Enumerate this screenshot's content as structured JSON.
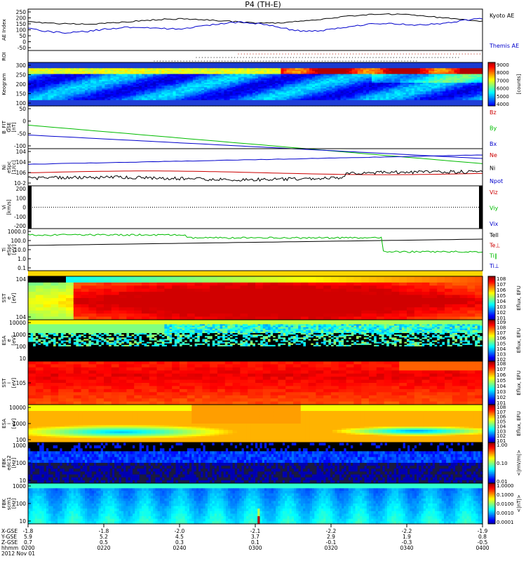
{
  "title": "P4 (TH-E)",
  "chart_data": {
    "type": "multi-panel-timeseries",
    "time_axis": {
      "rows": [
        {
          "label": "X-GSE",
          "values": [
            "-1.8",
            "-1.8",
            "-2.0",
            "-2.1",
            "-2.2",
            "-2.2",
            "-1.9"
          ]
        },
        {
          "label": "Y-GSE",
          "values": [
            "5.9",
            "5.2",
            "4.5",
            "3.7",
            "2.9",
            "1.9",
            "0.8"
          ]
        },
        {
          "label": "Z-GSE",
          "values": [
            "0.7",
            "0.5",
            "0.3",
            "0.1",
            "-0.1",
            "-0.3",
            "-0.5"
          ]
        },
        {
          "label": "hhmm",
          "values": [
            "0200",
            "0220",
            "0240",
            "0300",
            "0320",
            "0340",
            "0400"
          ]
        }
      ],
      "date": "2012 Nov 01"
    },
    "panels": [
      {
        "id": "ae",
        "ylabel": "AE Index",
        "yticks": [
          "250",
          "200",
          "150",
          "100",
          "50",
          "0",
          "-50"
        ],
        "ylim": [
          -50,
          250
        ],
        "series": [
          {
            "name": "Kyoto AE",
            "color": "#000000"
          },
          {
            "name": "Themis AE",
            "color": "#0000cc"
          }
        ]
      },
      {
        "id": "roi",
        "ylabel": "ROI"
      },
      {
        "id": "keogram",
        "ylabel": "Keogram",
        "yticks": [
          "300",
          "250",
          "200",
          "150",
          "100"
        ],
        "colorbar": {
          "ticks": [
            "9000",
            "8000",
            "7000",
            "6000",
            "5000",
            "4000"
          ],
          "label": "[counts]"
        }
      },
      {
        "id": "bfit",
        "ylabel": "B_FIT\nGSE\n[nT]",
        "yticks": [
          "50",
          "0",
          "-50",
          "-100"
        ],
        "ylim": [
          -100,
          50
        ],
        "series": [
          {
            "name": "Bz",
            "color": "#cc0000"
          },
          {
            "name": "By",
            "color": "#00bb00"
          },
          {
            "name": "Bx",
            "color": "#0000cc"
          }
        ]
      },
      {
        "id": "ni",
        "ylabel": "Ni\neSpc\n[1/cc]",
        "yticks": [
          "10^4",
          "10^4",
          "10^6",
          "10^-2"
        ],
        "series": [
          {
            "name": "Ne",
            "color": "#cc0000"
          },
          {
            "name": "Ni",
            "color": "#000000"
          },
          {
            "name": "Npot",
            "color": "#0000cc"
          }
        ]
      },
      {
        "id": "vi",
        "ylabel": "Vi\n[km/s]",
        "yticks": [
          "200",
          "100",
          "0",
          "-100",
          "-200"
        ],
        "ylim": [
          -200,
          200
        ],
        "series": [
          {
            "name": "Viz",
            "color": "#cc0000"
          },
          {
            "name": "Viy",
            "color": "#00bb00"
          },
          {
            "name": "Vix",
            "color": "#0000cc"
          }
        ]
      },
      {
        "id": "ti",
        "ylabel": "Ti\neSpc\n[eV]",
        "yticks": [
          "1000.0",
          "100.0",
          "10.0",
          "1.0",
          "0.1"
        ],
        "series": [
          {
            "name": "Tell",
            "color": "#000000"
          },
          {
            "name": "Te⊥",
            "color": "#cc0000"
          },
          {
            "name": "Ti‖",
            "color": "#00bb00"
          },
          {
            "name": "Ti⊥",
            "color": "#0000cc"
          }
        ]
      },
      {
        "id": "sst_e",
        "ylabel": "SST\ne\n[eV]",
        "yticks": [
          "10^4",
          "10^4"
        ],
        "colorbar": {
          "ticks": [
            "10^8",
            "10^7",
            "10^6",
            "10^5",
            "10^4",
            "10^3",
            "10^2",
            "10^1"
          ],
          "label": "Eflux, EFU"
        }
      },
      {
        "id": "esa_e",
        "ylabel": "ESA\ne\n[eV]",
        "yticks": [
          "10000",
          "1000",
          "100",
          "10"
        ],
        "colorbar": {
          "ticks": [
            "10^9",
            "10^8",
            "10^7",
            "10^6",
            "10^5",
            "10^4",
            "10^3",
            "10^2"
          ],
          "label": "Eflux, EFU"
        }
      },
      {
        "id": "sst_i",
        "ylabel": "SST\ni\n[eV]",
        "yticks": [
          "10^5"
        ],
        "colorbar": {
          "ticks": [
            "10^8",
            "10^7",
            "10^6",
            "10^5",
            "10^4",
            "10^3",
            "10^2",
            "10^1"
          ],
          "label": "Eflux, EFU"
        }
      },
      {
        "id": "esa_i",
        "ylabel": "ESA\ni\n[eV]",
        "yticks": [
          "10000",
          "1000",
          "100"
        ],
        "colorbar": {
          "ticks": [
            "10^8",
            "10^7",
            "10^6",
            "10^5",
            "10^4",
            "10^3",
            "10^2",
            "10^1"
          ],
          "label": "Eflux, EFU"
        }
      },
      {
        "id": "fbk_e",
        "ylabel": "FBK\nedc12\n[Hz]",
        "yticks": [
          "1000",
          "100",
          "10"
        ],
        "colorbar": {
          "ticks": [
            "1.00",
            "0.10",
            "0.01"
          ],
          "label": "<|mV/m|>"
        }
      },
      {
        "id": "fbk_s",
        "ylabel": "FBK\nscm1\n[Hz]",
        "yticks": [
          "1000",
          "100",
          "10"
        ],
        "colorbar": {
          "ticks": [
            "1.0000",
            "0.1000",
            "0.0100",
            "0.0010",
            "0.0001"
          ],
          "label": "<|nT|>"
        }
      }
    ]
  }
}
